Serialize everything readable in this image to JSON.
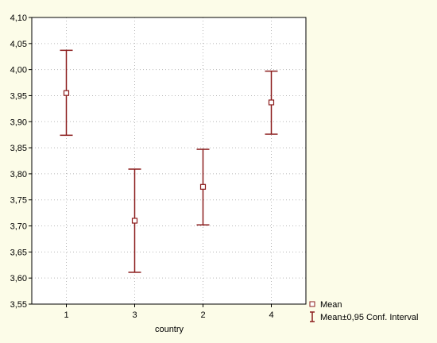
{
  "chart_data": {
    "type": "scatter",
    "subtype": "error-bar",
    "title": "",
    "xlabel": "country",
    "ylabel": "",
    "categories": [
      "1",
      "3",
      "2",
      "4"
    ],
    "ylim": [
      3.55,
      4.1
    ],
    "yticks": [
      "3,55",
      "3,60",
      "3,65",
      "3,70",
      "3,75",
      "3,80",
      "3,85",
      "3,90",
      "3,95",
      "4,00",
      "4,05",
      "4,10"
    ],
    "series": [
      {
        "name": "Mean",
        "values": [
          3.955,
          3.71,
          3.775,
          3.937
        ]
      },
      {
        "name": "Mean±0,95 Conf. Interval",
        "lower": [
          3.874,
          3.611,
          3.702,
          3.876
        ],
        "upper": [
          4.037,
          3.809,
          3.847,
          3.997
        ]
      }
    ],
    "grid": true,
    "legend_position": "bottom-right",
    "colors": {
      "series": "#8b1c1c",
      "plot_background": "#ffffff",
      "page_background": "#fcfce8",
      "grid": "#b8b8b8"
    }
  }
}
